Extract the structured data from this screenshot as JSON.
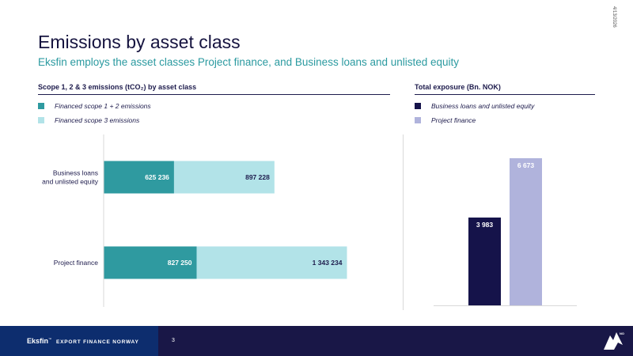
{
  "date_stamp": "4/13/2026",
  "title": "Emissions by asset class",
  "subtitle": "Eksfin employs the asset classes Project finance, and Business loans and unlisted equity",
  "left_section": {
    "heading": "Scope 1, 2 & 3 emissions (tCO₂) by asset class"
  },
  "right_section": {
    "heading": "Total exposure (Bn. NOK)"
  },
  "colors": {
    "scope12": "#2f9aa0",
    "scope3": "#b2e3e8",
    "business": "#15134a",
    "project": "#b0b3dc",
    "navy": "#1d1b4c"
  },
  "chart_data": [
    {
      "type": "bar",
      "orientation": "horizontal",
      "stacked": true,
      "title": "Scope 1, 2 & 3 emissions (tCO₂) by asset class",
      "categories": [
        "Business loans and unlisted equity",
        "Project finance"
      ],
      "category_lines": [
        [
          "Business loans",
          "and unlisted equity"
        ],
        [
          "Project finance"
        ]
      ],
      "series": [
        {
          "name": "Financed scope 1 + 2 emissions",
          "values": [
            625236,
            827250
          ],
          "labels": [
            "625 236",
            "827 250"
          ],
          "color": "#2f9aa0"
        },
        {
          "name": "Financed scope 3 emissions",
          "values": [
            897228,
            1343234
          ],
          "labels": [
            "897 228",
            "1 343 234"
          ],
          "color": "#b2e3e8"
        }
      ],
      "legend": "top-left",
      "grid": false
    },
    {
      "type": "bar",
      "title": "Total exposure (Bn. NOK)",
      "categories": [
        "Business loans and unlisted equity",
        "Project finance"
      ],
      "values": [
        3983,
        6673
      ],
      "labels": [
        "3 983",
        "6 673"
      ],
      "colors": [
        "#15134a",
        "#b0b3dc"
      ],
      "legend": "top-left",
      "grid": false
    }
  ],
  "footer": {
    "brand_name": "Eksfin",
    "brand_tm": "™",
    "brand_tagline": "EXPORT FINANCE NORWAY",
    "page_number": "3"
  }
}
